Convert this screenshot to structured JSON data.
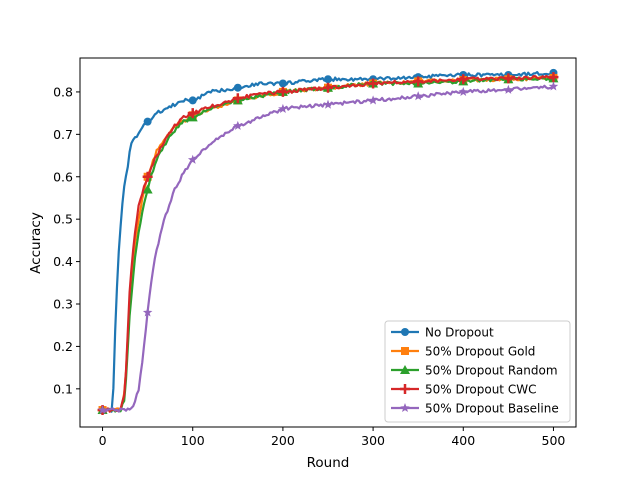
{
  "chart_data": {
    "type": "line",
    "title": "",
    "xlabel": "Round",
    "ylabel": "Accuracy",
    "xlim": [
      -25,
      525
    ],
    "ylim": [
      0.01,
      0.88
    ],
    "xticks": [
      0,
      100,
      200,
      300,
      400,
      500
    ],
    "yticks": [
      0.1,
      0.2,
      0.3,
      0.4,
      0.5,
      0.6,
      0.7,
      0.8
    ],
    "grid": false,
    "legend_position": "lower-right",
    "series": [
      {
        "name": "No Dropout",
        "color": "#1f77b4",
        "marker": "circle",
        "x": [
          0,
          5,
          10,
          12,
          15,
          18,
          20,
          22,
          25,
          28,
          30,
          32,
          35,
          40,
          45,
          50,
          55,
          60,
          70,
          80,
          90,
          100,
          120,
          150,
          175,
          200,
          250,
          300,
          350,
          400,
          450,
          500
        ],
        "y": [
          0.05,
          0.05,
          0.05,
          0.1,
          0.3,
          0.42,
          0.48,
          0.54,
          0.59,
          0.62,
          0.66,
          0.68,
          0.69,
          0.7,
          0.72,
          0.73,
          0.74,
          0.75,
          0.76,
          0.77,
          0.78,
          0.78,
          0.8,
          0.81,
          0.82,
          0.82,
          0.83,
          0.83,
          0.835,
          0.84,
          0.84,
          0.845
        ]
      },
      {
        "name": "50% Dropout Gold",
        "color": "#ff7f0e",
        "marker": "square",
        "x": [
          0,
          10,
          20,
          25,
          30,
          35,
          40,
          45,
          50,
          55,
          60,
          70,
          80,
          90,
          100,
          120,
          150,
          175,
          200,
          250,
          300,
          350,
          400,
          450,
          500
        ],
        "y": [
          0.05,
          0.05,
          0.05,
          0.1,
          0.3,
          0.43,
          0.5,
          0.56,
          0.6,
          0.63,
          0.66,
          0.69,
          0.72,
          0.73,
          0.745,
          0.76,
          0.78,
          0.79,
          0.8,
          0.81,
          0.82,
          0.825,
          0.828,
          0.83,
          0.833
        ]
      },
      {
        "name": "50% Dropout Random",
        "color": "#2ca02c",
        "marker": "triangle",
        "x": [
          0,
          10,
          20,
          25,
          30,
          35,
          40,
          45,
          50,
          55,
          60,
          70,
          80,
          90,
          100,
          120,
          150,
          175,
          200,
          250,
          300,
          350,
          400,
          450,
          500
        ],
        "y": [
          0.05,
          0.05,
          0.05,
          0.08,
          0.27,
          0.39,
          0.47,
          0.53,
          0.57,
          0.61,
          0.64,
          0.68,
          0.71,
          0.73,
          0.74,
          0.76,
          0.78,
          0.79,
          0.8,
          0.81,
          0.82,
          0.82,
          0.825,
          0.83,
          0.832
        ]
      },
      {
        "name": "50% Dropout CWC",
        "color": "#d62728",
        "marker": "plus",
        "x": [
          0,
          10,
          20,
          25,
          30,
          35,
          40,
          45,
          50,
          55,
          60,
          70,
          80,
          90,
          100,
          120,
          150,
          175,
          200,
          250,
          300,
          350,
          400,
          450,
          500
        ],
        "y": [
          0.05,
          0.05,
          0.05,
          0.09,
          0.33,
          0.45,
          0.53,
          0.57,
          0.6,
          0.63,
          0.65,
          0.69,
          0.72,
          0.74,
          0.75,
          0.765,
          0.785,
          0.795,
          0.8,
          0.81,
          0.82,
          0.825,
          0.83,
          0.832,
          0.835
        ]
      },
      {
        "name": "50% Dropout Baseline",
        "color": "#9467bd",
        "marker": "star",
        "x": [
          0,
          10,
          20,
          30,
          35,
          40,
          45,
          50,
          55,
          60,
          65,
          70,
          80,
          90,
          100,
          120,
          150,
          175,
          200,
          250,
          300,
          350,
          400,
          450,
          500
        ],
        "y": [
          0.05,
          0.05,
          0.05,
          0.05,
          0.06,
          0.1,
          0.18,
          0.28,
          0.37,
          0.43,
          0.47,
          0.51,
          0.57,
          0.61,
          0.64,
          0.68,
          0.72,
          0.74,
          0.76,
          0.77,
          0.78,
          0.79,
          0.8,
          0.805,
          0.813
        ]
      }
    ]
  }
}
